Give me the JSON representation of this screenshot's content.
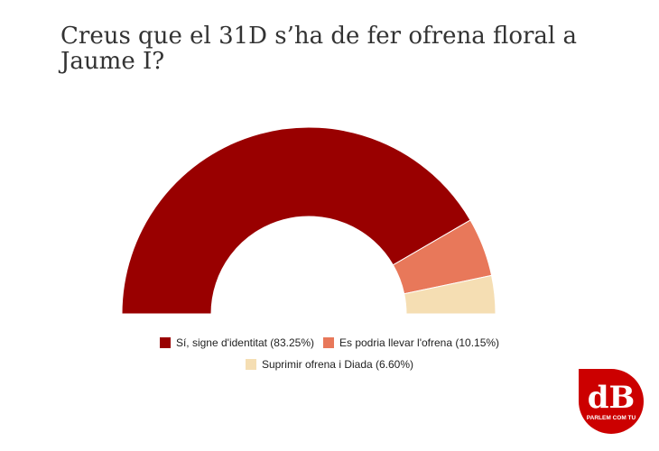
{
  "chart_data": {
    "type": "pie",
    "variant": "semi-donut",
    "title": "Creus que el 31D s’ha de fer ofrena floral a Jaume I?",
    "categories": [
      "Sí, signe d'identitat",
      "Es podria llevar l'ofrena",
      "Suprimir ofrena i Diada"
    ],
    "values": [
      83.25,
      10.15,
      6.6
    ],
    "colors": [
      "#990000",
      "#e8785a",
      "#f5deb3"
    ],
    "legend_labels": [
      "Sí, signe d'identitat (83.25%)",
      "Es podria llevar l'ofrena (10.15%)",
      "Suprimir ofrena i Diada (6.60%)"
    ],
    "legend_placement": "bottom"
  },
  "logo": {
    "text": "dB",
    "tagline": "PARLEM COM TU",
    "color": "#cc0000"
  }
}
